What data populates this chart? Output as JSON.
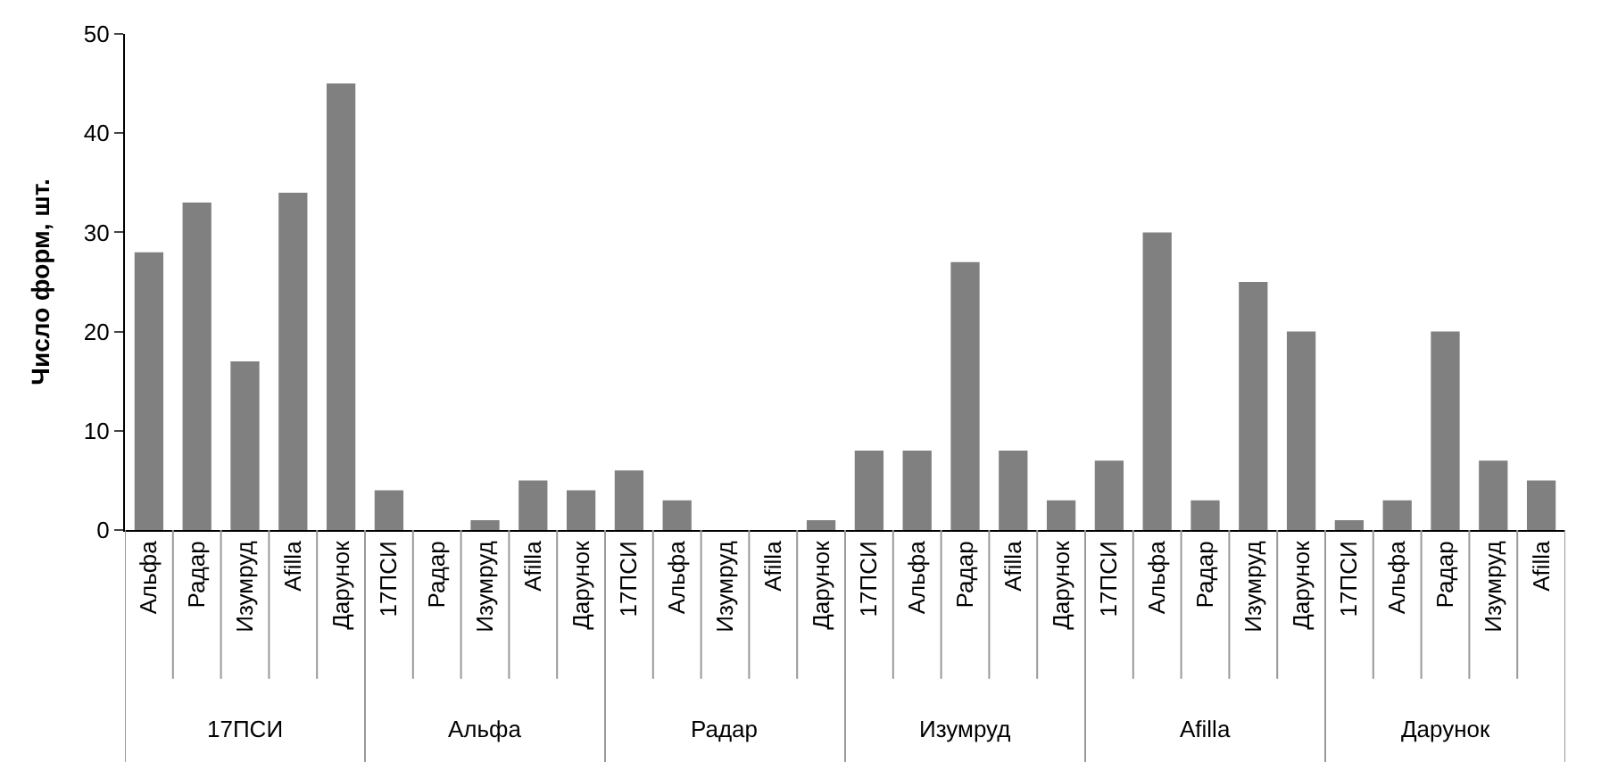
{
  "chart_data": {
    "type": "bar",
    "ylabel": "Число форм, шт.",
    "categories": [
      "Альфа",
      "Радар",
      "Изумруд",
      "Afilla",
      "Дарунок",
      "17ПСИ",
      "Радар",
      "Изумруд",
      "Afilla",
      "Дарунок",
      "17ПСИ",
      "Альфа",
      "Изумруд",
      "Afilla",
      "Дарунок",
      "17ПСИ",
      "Альфа",
      "Радар",
      "Afilla",
      "Дарунок",
      "17ПСИ",
      "Альфа",
      "Радар",
      "Изумруд",
      "Дарунок",
      "17ПСИ",
      "Альфа",
      "Радар",
      "Изумруд",
      "Afilla"
    ],
    "values": [
      28,
      33,
      17,
      34,
      45,
      4,
      0,
      1,
      5,
      4,
      6,
      3,
      0,
      0,
      1,
      8,
      8,
      27,
      8,
      3,
      7,
      30,
      3,
      25,
      20,
      1,
      3,
      20,
      7,
      5
    ],
    "color": "#808080",
    "ylim": [
      0,
      50
    ],
    "yticks": [
      0,
      10,
      20,
      30,
      40,
      50
    ],
    "annotations": [
      "17ПСИ",
      "Альфа",
      "Радар",
      "Изумруд",
      "Afilla",
      "Дарунок"
    ]
  }
}
